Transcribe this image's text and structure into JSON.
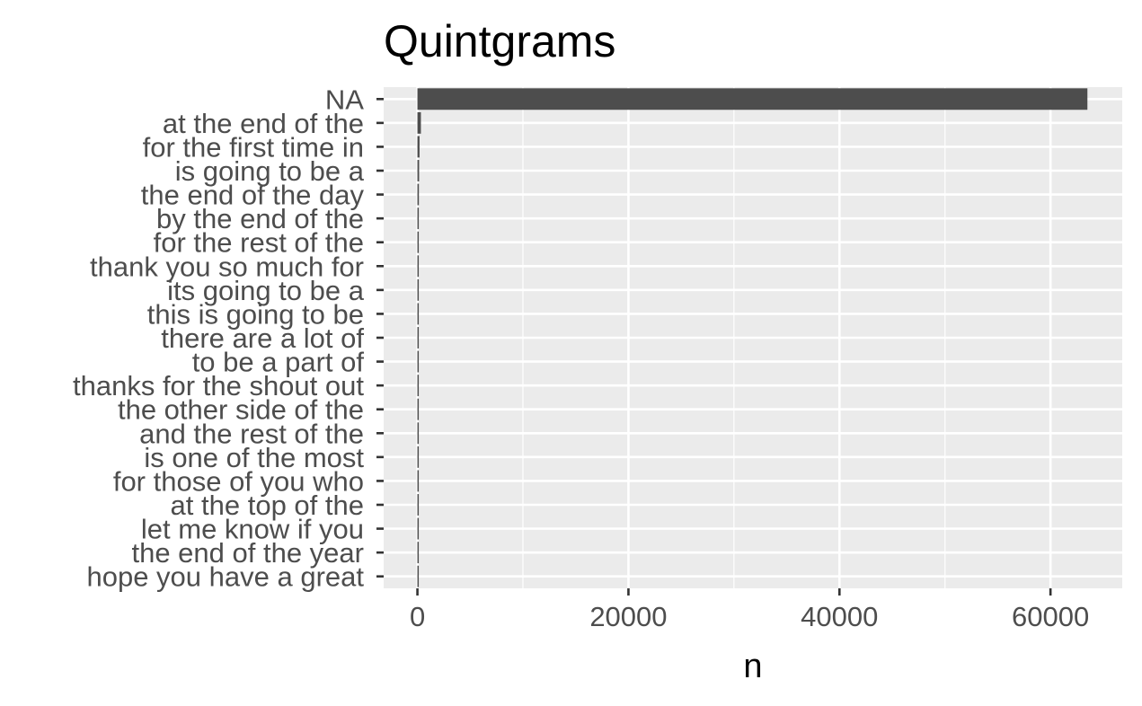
{
  "chart_data": {
    "type": "bar",
    "orientation": "horizontal",
    "title": "Quintgrams",
    "xlabel": "n",
    "ylabel": "",
    "categories": [
      "NA",
      "at the end of the",
      "for the first time in",
      "is going to be a",
      "the end of the day",
      "by the end of the",
      "for the rest of the",
      "thank you so much for",
      "its going to be a",
      "this is going to be",
      "there are a lot of",
      "to be a part of",
      "thanks for the shout out",
      "the other side of the",
      "and the rest of the",
      "is one of the most",
      "for those of you who",
      "at the top of the",
      "let me know if you",
      "the end of the year",
      "hope you have a great"
    ],
    "values": [
      63500,
      330,
      200,
      160,
      140,
      130,
      120,
      115,
      110,
      105,
      100,
      95,
      92,
      90,
      88,
      85,
      82,
      80,
      78,
      76,
      74
    ],
    "xlim": [
      -3200,
      66800
    ],
    "xticks": [
      0,
      20000,
      40000,
      60000
    ],
    "xminor": [
      10000,
      30000,
      50000
    ],
    "grid": true,
    "legend": "none",
    "colors": {
      "bar": "#4d4d4d",
      "panel": "#ebebeb",
      "grid": "#ffffff",
      "tick": "#333333",
      "tick_label": "#4d4d4d",
      "text": "#000000"
    }
  }
}
